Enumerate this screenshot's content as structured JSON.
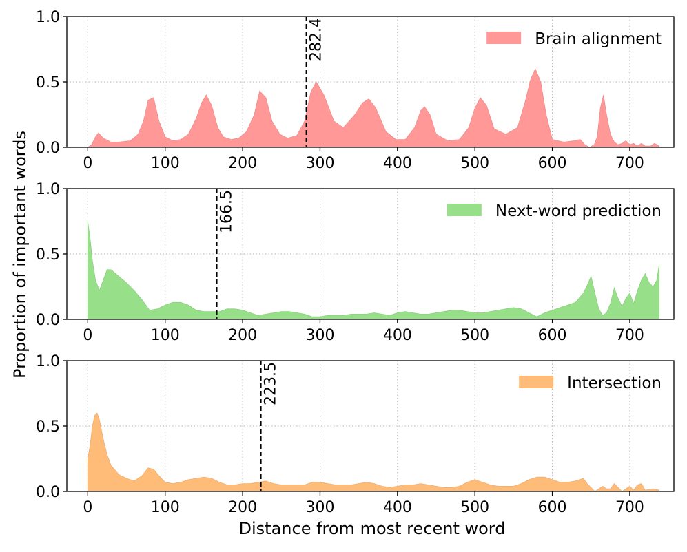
{
  "figure": {
    "ylabel": "Proportion of important words",
    "xlabel": "Distance from most recent word"
  },
  "chart_data": [
    {
      "type": "area",
      "title": "",
      "xlabel": "",
      "ylabel": "",
      "xlim": [
        -27,
        757
      ],
      "ylim": [
        0,
        1
      ],
      "xticks": [
        0,
        100,
        200,
        300,
        400,
        500,
        600,
        700
      ],
      "yticks": [
        0.0,
        0.5,
        1.0
      ],
      "ytick_labels": [
        "0.0",
        "0.5",
        "1.0"
      ],
      "grid": true,
      "legend_position": "top-right",
      "series": [
        {
          "name": "Brain alignment",
          "color": "#ff9896",
          "x": [
            0,
            5,
            10,
            14,
            20,
            30,
            40,
            55,
            65,
            72,
            78,
            85,
            92,
            100,
            110,
            120,
            130,
            140,
            147,
            153,
            160,
            168,
            175,
            185,
            195,
            205,
            215,
            222,
            230,
            238,
            248,
            258,
            270,
            280,
            288,
            295,
            305,
            318,
            330,
            345,
            355,
            363,
            372,
            385,
            398,
            410,
            422,
            430,
            435,
            442,
            450,
            465,
            480,
            492,
            500,
            507,
            515,
            525,
            540,
            555,
            565,
            572,
            578,
            585,
            592,
            600,
            615,
            628,
            636,
            642,
            648,
            654,
            658,
            662,
            666,
            670,
            675,
            680,
            685,
            690,
            695,
            700,
            705,
            710,
            715,
            720,
            727,
            732,
            738
          ],
          "y": [
            0.0,
            0.02,
            0.08,
            0.11,
            0.07,
            0.04,
            0.04,
            0.05,
            0.1,
            0.2,
            0.36,
            0.38,
            0.2,
            0.08,
            0.05,
            0.06,
            0.1,
            0.22,
            0.34,
            0.4,
            0.32,
            0.15,
            0.08,
            0.06,
            0.07,
            0.12,
            0.25,
            0.43,
            0.38,
            0.2,
            0.1,
            0.07,
            0.09,
            0.2,
            0.42,
            0.5,
            0.4,
            0.2,
            0.15,
            0.25,
            0.34,
            0.37,
            0.3,
            0.12,
            0.06,
            0.06,
            0.15,
            0.28,
            0.31,
            0.25,
            0.1,
            0.05,
            0.06,
            0.15,
            0.3,
            0.38,
            0.32,
            0.14,
            0.1,
            0.15,
            0.35,
            0.52,
            0.6,
            0.5,
            0.25,
            0.06,
            0.04,
            0.05,
            0.06,
            0.02,
            0.0,
            0.02,
            0.08,
            0.3,
            0.4,
            0.25,
            0.1,
            0.04,
            0.02,
            0.03,
            0.05,
            0.02,
            0.03,
            0.01,
            0.03,
            0.01,
            0.01,
            0.03,
            0.01
          ]
        }
      ],
      "vline": {
        "x": 282.4,
        "label": "282.4"
      }
    },
    {
      "type": "area",
      "title": "",
      "xlabel": "",
      "ylabel": "",
      "xlim": [
        -27,
        757
      ],
      "ylim": [
        0,
        1
      ],
      "xticks": [
        0,
        100,
        200,
        300,
        400,
        500,
        600,
        700
      ],
      "yticks": [
        0.0,
        0.5,
        1.0
      ],
      "ytick_labels": [
        "0.0",
        "0.5",
        "1.0"
      ],
      "grid": true,
      "legend_position": "top-right",
      "series": [
        {
          "name": "Next-word prediction",
          "color": "#98df8a",
          "x": [
            0,
            3,
            6,
            10,
            15,
            20,
            25,
            30,
            40,
            50,
            60,
            70,
            80,
            90,
            100,
            110,
            120,
            130,
            140,
            150,
            160,
            170,
            180,
            190,
            200,
            210,
            220,
            230,
            240,
            250,
            260,
            270,
            280,
            290,
            300,
            310,
            320,
            330,
            340,
            350,
            360,
            370,
            380,
            390,
            400,
            410,
            420,
            430,
            440,
            450,
            460,
            470,
            480,
            490,
            500,
            510,
            520,
            530,
            540,
            550,
            560,
            570,
            580,
            590,
            600,
            610,
            620,
            630,
            640,
            645,
            650,
            655,
            660,
            665,
            670,
            675,
            680,
            685,
            690,
            695,
            700,
            705,
            710,
            715,
            720,
            725,
            730,
            735,
            738
          ],
          "y": [
            0.75,
            0.62,
            0.45,
            0.3,
            0.22,
            0.3,
            0.38,
            0.38,
            0.33,
            0.28,
            0.22,
            0.15,
            0.07,
            0.08,
            0.11,
            0.13,
            0.13,
            0.11,
            0.07,
            0.06,
            0.06,
            0.06,
            0.08,
            0.08,
            0.07,
            0.05,
            0.03,
            0.04,
            0.05,
            0.06,
            0.06,
            0.05,
            0.04,
            0.02,
            0.02,
            0.03,
            0.03,
            0.03,
            0.04,
            0.04,
            0.04,
            0.05,
            0.04,
            0.03,
            0.05,
            0.06,
            0.05,
            0.04,
            0.04,
            0.05,
            0.06,
            0.07,
            0.07,
            0.06,
            0.05,
            0.05,
            0.06,
            0.07,
            0.08,
            0.09,
            0.08,
            0.05,
            0.02,
            0.05,
            0.07,
            0.09,
            0.11,
            0.13,
            0.2,
            0.26,
            0.33,
            0.2,
            0.08,
            0.03,
            0.05,
            0.12,
            0.24,
            0.16,
            0.1,
            0.16,
            0.2,
            0.12,
            0.22,
            0.3,
            0.35,
            0.28,
            0.25,
            0.3,
            0.42
          ]
        }
      ],
      "vline": {
        "x": 166.5,
        "label": "166.5"
      }
    },
    {
      "type": "area",
      "title": "",
      "xlabel": "Distance from most recent word",
      "ylabel": "",
      "xlim": [
        -27,
        757
      ],
      "ylim": [
        0,
        1
      ],
      "xticks": [
        0,
        100,
        200,
        300,
        400,
        500,
        600,
        700
      ],
      "yticks": [
        0.0,
        0.5,
        1.0
      ],
      "ytick_labels": [
        "0.0",
        "0.5",
        "1.0"
      ],
      "grid": true,
      "legend_position": "top-right",
      "series": [
        {
          "name": "Intersection",
          "color": "#ffbb78",
          "x": [
            0,
            3,
            6,
            9,
            12,
            15,
            20,
            25,
            30,
            40,
            50,
            60,
            70,
            78,
            85,
            92,
            100,
            110,
            120,
            130,
            140,
            150,
            160,
            170,
            180,
            190,
            200,
            210,
            220,
            230,
            240,
            250,
            260,
            270,
            280,
            290,
            300,
            310,
            320,
            330,
            340,
            350,
            360,
            370,
            380,
            390,
            400,
            410,
            420,
            430,
            440,
            450,
            460,
            470,
            480,
            490,
            500,
            510,
            520,
            530,
            540,
            550,
            560,
            570,
            580,
            590,
            600,
            610,
            620,
            630,
            640,
            645,
            650,
            655,
            660,
            665,
            670,
            675,
            680,
            685,
            690,
            695,
            700,
            705,
            710,
            715,
            720,
            730,
            738
          ],
          "y": [
            0.25,
            0.35,
            0.5,
            0.58,
            0.6,
            0.55,
            0.4,
            0.28,
            0.2,
            0.13,
            0.1,
            0.08,
            0.12,
            0.18,
            0.17,
            0.12,
            0.07,
            0.06,
            0.07,
            0.09,
            0.1,
            0.11,
            0.1,
            0.07,
            0.05,
            0.05,
            0.06,
            0.06,
            0.07,
            0.08,
            0.06,
            0.05,
            0.05,
            0.05,
            0.05,
            0.07,
            0.07,
            0.06,
            0.05,
            0.05,
            0.05,
            0.06,
            0.07,
            0.06,
            0.04,
            0.03,
            0.04,
            0.05,
            0.05,
            0.06,
            0.05,
            0.04,
            0.03,
            0.03,
            0.04,
            0.07,
            0.09,
            0.07,
            0.05,
            0.04,
            0.04,
            0.04,
            0.06,
            0.09,
            0.11,
            0.11,
            0.09,
            0.07,
            0.07,
            0.08,
            0.1,
            0.06,
            0.03,
            0.0,
            0.02,
            0.04,
            0.02,
            0.02,
            0.06,
            0.03,
            0.0,
            0.02,
            0.04,
            0.01,
            0.05,
            0.06,
            0.01,
            0.02,
            0.01
          ]
        }
      ],
      "vline": {
        "x": 223.5,
        "label": "223.5"
      }
    }
  ]
}
